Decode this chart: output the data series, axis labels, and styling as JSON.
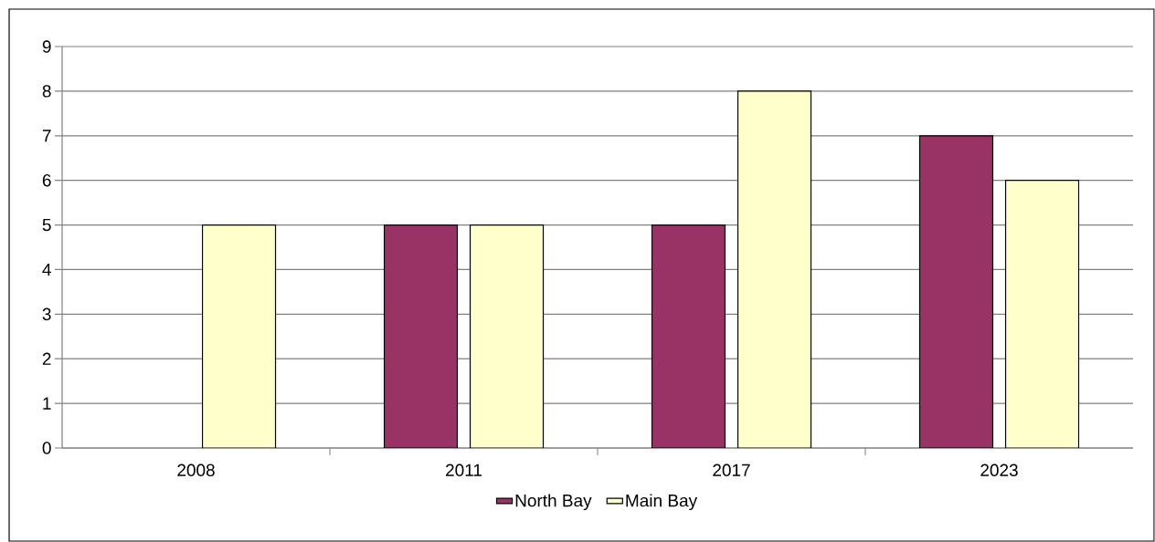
{
  "chart_data": {
    "type": "bar",
    "categories": [
      "2008",
      "2011",
      "2017",
      "2023"
    ],
    "series": [
      {
        "name": "North Bay",
        "color": "#993366",
        "values": [
          null,
          5,
          5,
          7
        ]
      },
      {
        "name": "Main Bay",
        "color": "#ffffcc",
        "values": [
          5,
          5,
          8,
          6
        ]
      }
    ],
    "ylim": [
      0,
      9
    ],
    "yticks": [
      0,
      1,
      2,
      3,
      4,
      5,
      6,
      7,
      8,
      9
    ],
    "grid": "y",
    "legend": "bottom"
  }
}
